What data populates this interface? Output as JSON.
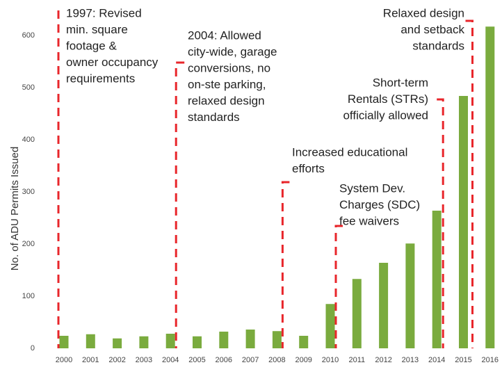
{
  "chart_data": {
    "type": "bar",
    "y_label": "No. of ADU Permits Issued",
    "categories": [
      "2000",
      "2001",
      "2002",
      "2003",
      "2004",
      "2005",
      "2006",
      "2007",
      "2008",
      "2009",
      "2010",
      "2011",
      "2012",
      "2013",
      "2014",
      "2015",
      "2016"
    ],
    "values": [
      24,
      27,
      19,
      23,
      28,
      23,
      32,
      36,
      33,
      24,
      85,
      133,
      164,
      201,
      264,
      484,
      617
    ],
    "color": "#7aab3e",
    "ylim": [
      0,
      668
    ],
    "yticks": [
      0,
      100,
      200,
      300,
      400,
      500,
      600
    ],
    "grid": false,
    "annotations": [
      {
        "x": "2000",
        "lines": [
          "1997: Revised",
          "min. square",
          "footage &",
          "owner occupancy",
          "requirements"
        ]
      },
      {
        "x": "2004",
        "lines": [
          "2004: Allowed",
          "city-wide, garage",
          "conversions, no",
          "on-ste parking,",
          "relaxed design",
          "standards"
        ]
      },
      {
        "x": "2008",
        "lines": [
          "Increased educational",
          "efforts"
        ]
      },
      {
        "x": "2010",
        "lines": [
          "System Dev.",
          "Charges (SDC)",
          "fee waivers"
        ]
      },
      {
        "x": "2014",
        "lines": [
          "Short-term",
          "Rentals (STRs)",
          "officially allowed"
        ]
      },
      {
        "x": "2015",
        "lines": [
          "Relaxed design",
          "and setback",
          "standards"
        ]
      }
    ]
  }
}
